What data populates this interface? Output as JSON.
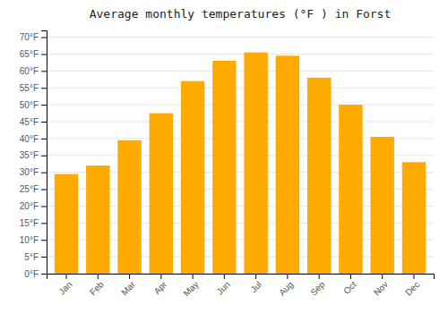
{
  "chart_data": {
    "type": "bar",
    "title": "Average monthly temperatures (°F ) in Forst",
    "categories": [
      "Jan",
      "Feb",
      "Mar",
      "Apr",
      "May",
      "Jun",
      "Jul",
      "Aug",
      "Sep",
      "Oct",
      "Nov",
      "Dec"
    ],
    "values": [
      29.5,
      32.0,
      39.5,
      47.5,
      57.0,
      63.0,
      65.5,
      64.5,
      58.0,
      50.0,
      40.5,
      33.0
    ],
    "color": "#FFAA00",
    "ylim": [
      0,
      72
    ],
    "yticks": [
      {
        "value": 0,
        "label": "0°F"
      },
      {
        "value": 5,
        "label": "5°F"
      },
      {
        "value": 10,
        "label": "10°F"
      },
      {
        "value": 15,
        "label": "15°F"
      },
      {
        "value": 20,
        "label": "20°F"
      },
      {
        "value": 25,
        "label": "25°F"
      },
      {
        "value": 30,
        "label": "30°F"
      },
      {
        "value": 35,
        "label": "35°F"
      },
      {
        "value": 40,
        "label": "40°F"
      },
      {
        "value": 45,
        "label": "45°F"
      },
      {
        "value": 50,
        "label": "50°F"
      },
      {
        "value": 55,
        "label": "55°F"
      },
      {
        "value": 60,
        "label": "60°F"
      },
      {
        "value": 65,
        "label": "65°F"
      },
      {
        "value": 70,
        "label": "70°F"
      }
    ],
    "grid": true
  }
}
